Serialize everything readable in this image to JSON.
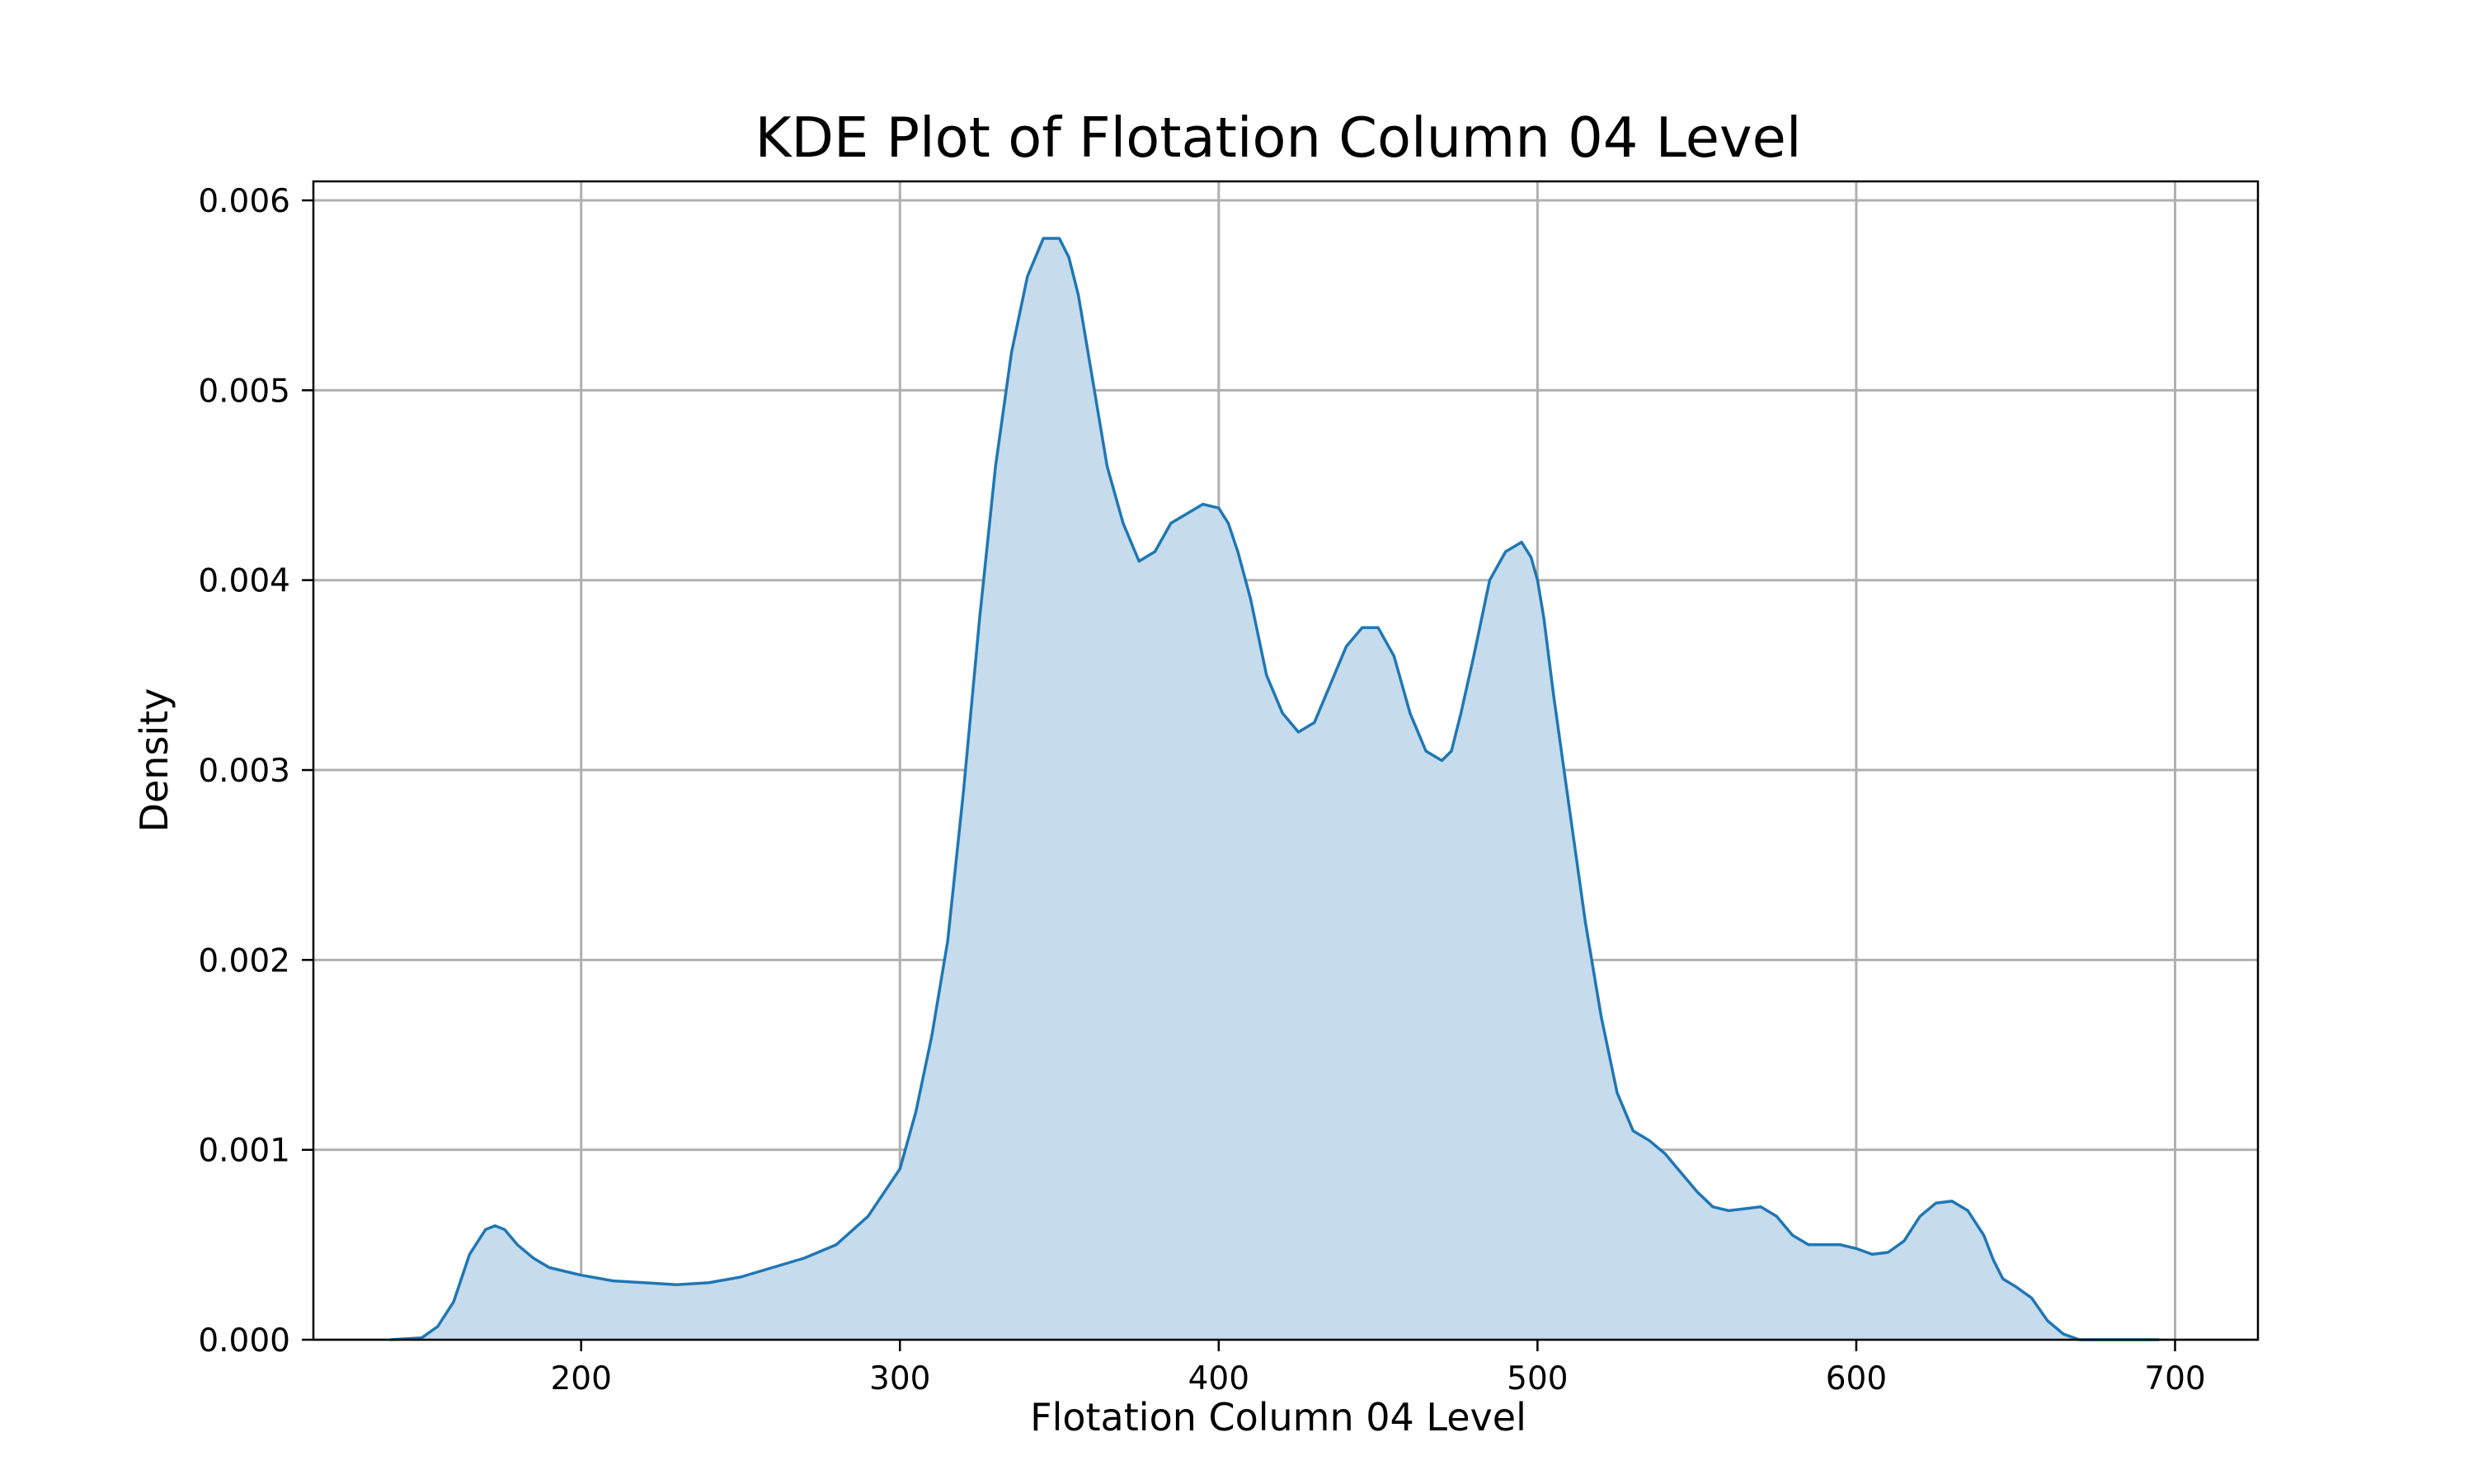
{
  "chart_data": {
    "type": "area",
    "title": "KDE Plot of Flotation Column 04 Level",
    "xlabel": "Flotation Column 04 Level",
    "ylabel": "Density",
    "xlim": [
      116,
      726
    ],
    "ylim": [
      0,
      0.0061
    ],
    "grid": true,
    "x_ticks": [
      200,
      300,
      400,
      500,
      600,
      700
    ],
    "x_tick_labels": [
      "200",
      "300",
      "400",
      "500",
      "600",
      "700"
    ],
    "y_ticks": [
      0,
      0.001,
      0.002,
      0.003,
      0.004,
      0.005,
      0.006
    ],
    "y_tick_labels": [
      "0.000",
      "0.001",
      "0.002",
      "0.003",
      "0.004",
      "0.005",
      "0.006"
    ],
    "colors": {
      "line": "#1f77b4",
      "fill": "#c6dbec",
      "grid": "#b0b0b0",
      "axes": "#000000"
    },
    "series": [
      {
        "x": [
          140,
          150,
          155,
          160,
          165,
          170,
          173,
          176,
          180,
          185,
          190,
          200,
          210,
          220,
          230,
          240,
          250,
          260,
          270,
          280,
          290,
          300,
          305,
          310,
          315,
          320,
          325,
          330,
          335,
          340,
          345,
          350,
          353,
          356,
          360,
          365,
          370,
          375,
          380,
          385,
          390,
          395,
          400,
          403,
          406,
          410,
          415,
          420,
          425,
          430,
          435,
          440,
          445,
          450,
          455,
          460,
          465,
          470,
          473,
          476,
          480,
          485,
          490,
          495,
          498,
          500,
          502,
          505,
          510,
          515,
          520,
          525,
          530,
          535,
          540,
          545,
          550,
          555,
          560,
          565,
          570,
          575,
          580,
          585,
          590,
          595,
          600,
          605,
          610,
          615,
          620,
          625,
          630,
          635,
          640,
          643,
          646,
          650,
          655,
          660,
          665,
          670,
          675,
          680,
          685,
          690,
          695
        ],
        "y": [
          0.0,
          1e-05,
          7e-05,
          0.0002,
          0.00045,
          0.00058,
          0.0006,
          0.00058,
          0.0005,
          0.00043,
          0.00038,
          0.00034,
          0.00031,
          0.0003,
          0.00029,
          0.0003,
          0.00033,
          0.00038,
          0.00043,
          0.0005,
          0.00065,
          0.0009,
          0.0012,
          0.0016,
          0.0021,
          0.0029,
          0.0038,
          0.0046,
          0.0052,
          0.0056,
          0.0058,
          0.0058,
          0.0057,
          0.0055,
          0.0051,
          0.0046,
          0.0043,
          0.0041,
          0.00415,
          0.0043,
          0.00435,
          0.0044,
          0.00438,
          0.0043,
          0.00415,
          0.0039,
          0.0035,
          0.0033,
          0.0032,
          0.00325,
          0.00345,
          0.00365,
          0.00375,
          0.00375,
          0.0036,
          0.0033,
          0.0031,
          0.00305,
          0.0031,
          0.0033,
          0.0036,
          0.004,
          0.00415,
          0.0042,
          0.00412,
          0.004,
          0.0038,
          0.0034,
          0.0028,
          0.0022,
          0.0017,
          0.0013,
          0.0011,
          0.00105,
          0.00098,
          0.00088,
          0.00078,
          0.0007,
          0.00068,
          0.00069,
          0.0007,
          0.00065,
          0.00055,
          0.0005,
          0.0005,
          0.0005,
          0.00048,
          0.00045,
          0.00046,
          0.00052,
          0.00065,
          0.00072,
          0.00073,
          0.00068,
          0.00055,
          0.00042,
          0.00032,
          0.00028,
          0.00022,
          0.0001,
          3e-05,
          0.0,
          0.0,
          0.0,
          0.0,
          0.0,
          0.0
        ]
      }
    ]
  }
}
